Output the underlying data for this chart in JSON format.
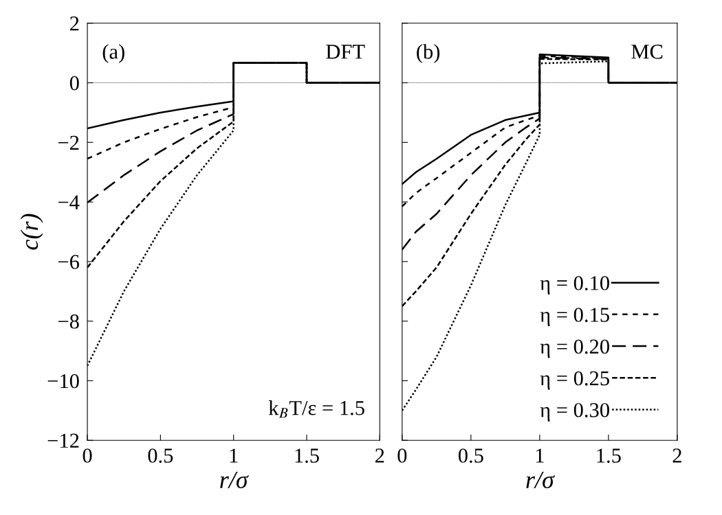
{
  "chart_data": [
    {
      "type": "line",
      "xlabel": "r/σ",
      "ylabel": "c(r)",
      "xlim": [
        0,
        2
      ],
      "ylim": [
        -12,
        2
      ],
      "xticks": [
        0,
        0.5,
        1,
        1.5,
        2
      ],
      "yticks": [
        -12,
        -10,
        -8,
        -6,
        -4,
        -2,
        0,
        2
      ],
      "grid": false,
      "legend": false,
      "annotations": [
        "(a)",
        "DFT",
        "k$_{B}$T/ε = 1.5"
      ],
      "ref_lines": [
        {
          "axis": "y",
          "value": 0,
          "color": "#000000",
          "line_style": "dotted"
        }
      ],
      "series": [
        {
          "color": "#000000",
          "line_style": "solid",
          "x": [
            0,
            0.25,
            0.5,
            0.75,
            1,
            1,
            1.5,
            1.5,
            2
          ],
          "values": [
            -1.53,
            -1.25,
            -1.0,
            -0.8,
            -0.62,
            0.67,
            0.67,
            0,
            0
          ]
        },
        {
          "color": "#000000",
          "line_style": "dashed",
          "x": [
            0,
            0.25,
            0.5,
            0.75,
            1,
            1,
            1.5,
            1.5,
            2
          ],
          "values": [
            -2.55,
            -2.0,
            -1.55,
            -1.15,
            -0.82,
            0.67,
            0.67,
            0,
            0
          ]
        },
        {
          "color": "#000000",
          "line_style": "dashed",
          "x": [
            0,
            0.25,
            0.5,
            0.75,
            1,
            1,
            1.5,
            1.5,
            2
          ],
          "values": [
            -4.02,
            -3.1,
            -2.3,
            -1.6,
            -1.05,
            0.67,
            0.67,
            0,
            0
          ]
        },
        {
          "color": "#000000",
          "line_style": "dashed",
          "x": [
            0,
            0.25,
            0.5,
            0.75,
            1,
            1,
            1.5,
            1.5,
            2
          ],
          "values": [
            -6.2,
            -4.65,
            -3.3,
            -2.2,
            -1.3,
            0.67,
            0.67,
            0,
            0
          ]
        },
        {
          "color": "#000000",
          "line_style": "dotted",
          "x": [
            0,
            0.25,
            0.5,
            0.75,
            1,
            1,
            1.5,
            1.5,
            2
          ],
          "values": [
            -9.5,
            -7.0,
            -4.9,
            -3.1,
            -1.6,
            0.67,
            0.67,
            0,
            0
          ]
        }
      ]
    },
    {
      "type": "line",
      "xlabel": "r/σ",
      "xlim": [
        0,
        2
      ],
      "ylim": [
        -12,
        2
      ],
      "xticks": [
        0,
        0.5,
        1,
        1.5,
        2
      ],
      "yticks": [
        -12,
        -10,
        -8,
        -6,
        -4,
        -2,
        0,
        2
      ],
      "tick_labels": "x",
      "grid": false,
      "legend": "bottom right",
      "annotations": [
        "(b)",
        "MC"
      ],
      "ref_lines": [
        {
          "axis": "y",
          "value": 0,
          "color": "#000000",
          "line_style": "dotted"
        }
      ],
      "series": [
        {
          "name": "η = 0.10",
          "color": "#000000",
          "line_style": "solid",
          "x": [
            0,
            0.1,
            0.25,
            0.5,
            0.75,
            0.9,
            1,
            1,
            1.5,
            1.5,
            2
          ],
          "values": [
            -3.4,
            -3.0,
            -2.55,
            -1.75,
            -1.25,
            -1.1,
            -1.0,
            0.95,
            0.85,
            0,
            0
          ]
        },
        {
          "name": "η = 0.15",
          "color": "#000000",
          "line_style": "dashed",
          "x": [
            0,
            0.1,
            0.25,
            0.5,
            0.75,
            0.9,
            1,
            1,
            1.5,
            1.5,
            2
          ],
          "values": [
            -4.15,
            -3.7,
            -3.2,
            -2.35,
            -1.5,
            -1.25,
            -1.1,
            0.9,
            0.82,
            0,
            0
          ]
        },
        {
          "name": "η = 0.20",
          "color": "#000000",
          "line_style": "dashed",
          "x": [
            0,
            0.1,
            0.25,
            0.5,
            0.75,
            0.9,
            1,
            1,
            1.5,
            1.5,
            2
          ],
          "values": [
            -5.6,
            -5.0,
            -4.4,
            -3.1,
            -2.0,
            -1.5,
            -1.2,
            0.85,
            0.8,
            0,
            0
          ]
        },
        {
          "name": "η = 0.25",
          "color": "#000000",
          "line_style": "dashed",
          "x": [
            0,
            0.1,
            0.25,
            0.5,
            0.75,
            0.9,
            1,
            1,
            1.5,
            1.5,
            2
          ],
          "values": [
            -7.5,
            -7.0,
            -6.2,
            -4.4,
            -2.75,
            -1.9,
            -1.4,
            0.8,
            0.78,
            0,
            0
          ]
        },
        {
          "name": "η = 0.30",
          "color": "#000000",
          "line_style": "dotted",
          "x": [
            0,
            0.1,
            0.25,
            0.5,
            0.75,
            0.9,
            1,
            1,
            1.5,
            1.5,
            2
          ],
          "values": [
            -11.0,
            -10.3,
            -9.2,
            -6.8,
            -4.1,
            -2.7,
            -1.75,
            0.65,
            0.72,
            0,
            0
          ]
        }
      ]
    }
  ]
}
